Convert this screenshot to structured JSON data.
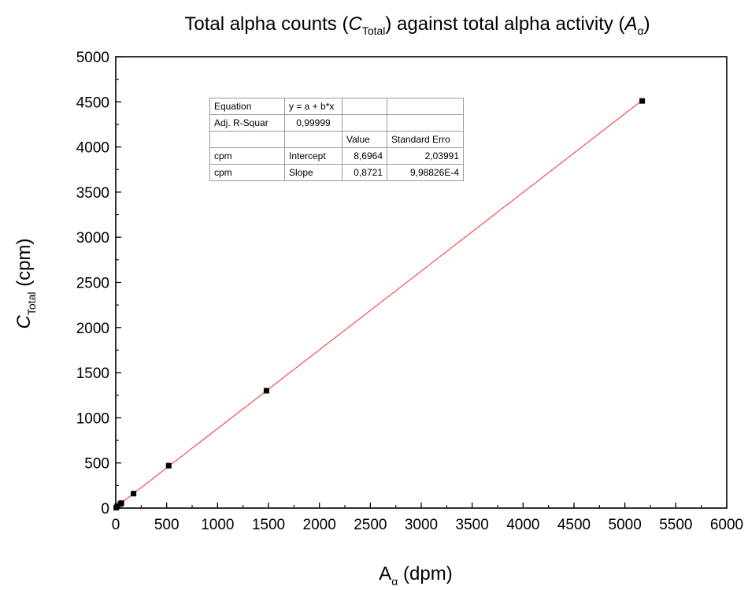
{
  "chart_data": {
    "type": "scatter",
    "title": {
      "prefix": "Total alpha counts (",
      "var": "C",
      "var_sub": "Total",
      "middle": ") against total alpha activity (",
      "var2": "A",
      "var2_sub": "α",
      "suffix": ")"
    },
    "xlabel": {
      "main": "A",
      "sub": "α",
      "rest": " (dpm)"
    },
    "ylabel": {
      "main": "C",
      "sub": "Total",
      "rest": " (cpm)"
    },
    "xlim": [
      0,
      6000
    ],
    "ylim": [
      0,
      5000
    ],
    "x_ticks": [
      0,
      500,
      1000,
      1500,
      2000,
      2500,
      3000,
      3500,
      4000,
      4500,
      5000,
      5500,
      6000
    ],
    "y_ticks": [
      0,
      500,
      1000,
      1500,
      2000,
      2500,
      3000,
      3500,
      4000,
      4500,
      5000
    ],
    "series": [
      {
        "x": [
          5,
          15,
          45,
          55,
          175,
          520,
          1480,
          5170
        ],
        "y": [
          5,
          20,
          45,
          55,
          160,
          470,
          1300,
          4510
        ],
        "marker": "square",
        "color": "#000000"
      }
    ],
    "fit": {
      "intercept": 8.6964,
      "slope": 0.8721,
      "color": "#ff2a2a"
    },
    "grid": false
  },
  "stats_table": {
    "rows": [
      [
        "Equation",
        "y = a + b*x",
        "",
        ""
      ],
      [
        "Adj. R-Squar",
        "0,99999",
        "",
        ""
      ],
      [
        "",
        "",
        "Value",
        "Standard Erro"
      ],
      [
        "cpm",
        "Intercept",
        "8,6964",
        "2,03991"
      ],
      [
        "cpm",
        "Slope",
        "0,8721",
        "9,98826E-4"
      ]
    ]
  }
}
